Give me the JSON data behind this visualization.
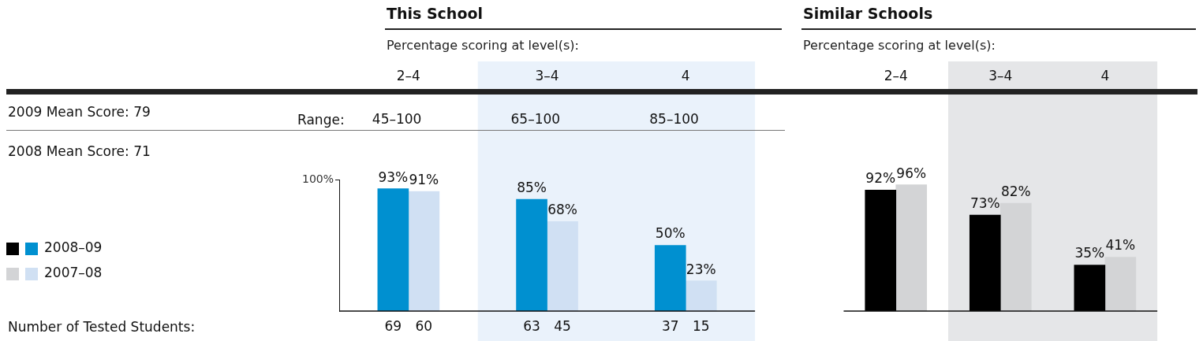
{
  "chart_data": [
    {
      "type": "bar",
      "title": "This School",
      "subtitle": "Percentage scoring at level(s):",
      "categories": [
        "2–4",
        "3–4",
        "4"
      ],
      "series": [
        {
          "name": "2008–09",
          "color": "#0090d0",
          "values": [
            93,
            85,
            50
          ],
          "value_labels": [
            "93%",
            "85%",
            "50%"
          ]
        },
        {
          "name": "2007–08",
          "color": "#d0e0f3",
          "values": [
            91,
            68,
            23
          ],
          "value_labels": [
            "91%",
            "68%",
            "23%"
          ]
        }
      ],
      "ylim": [
        0,
        100
      ],
      "yticks": [
        {
          "value": 100,
          "label": "100%"
        }
      ],
      "grid": false,
      "legend": "left",
      "bands": [
        {
          "axis": "x",
          "from": "3–4",
          "to": "4",
          "color": "#eaf2fb"
        }
      ],
      "annotations": [
        "2009 Mean Score: 79",
        "2008 Mean Score: 71",
        "Range:",
        "Number of Tested Students:",
        "45–100",
        "65–100",
        "85–100",
        "69",
        "60",
        "63",
        "45",
        "37",
        "15"
      ]
    },
    {
      "type": "bar",
      "title": "Similar Schools",
      "subtitle": "Percentage scoring at level(s):",
      "categories": [
        "2–4",
        "3–4",
        "4"
      ],
      "series": [
        {
          "color": "#000000",
          "values": [
            92,
            73,
            35
          ],
          "value_labels": [
            "92%",
            "73%",
            "35%"
          ]
        },
        {
          "color": "#d3d4d6",
          "values": [
            96,
            82,
            41
          ],
          "value_labels": [
            "96%",
            "82%",
            "41%"
          ]
        }
      ],
      "tick_labels": "x",
      "grid": false,
      "bands": [
        {
          "axis": "x",
          "from": "3–4",
          "to": "4",
          "color": "#e5e6e8"
        }
      ]
    }
  ]
}
